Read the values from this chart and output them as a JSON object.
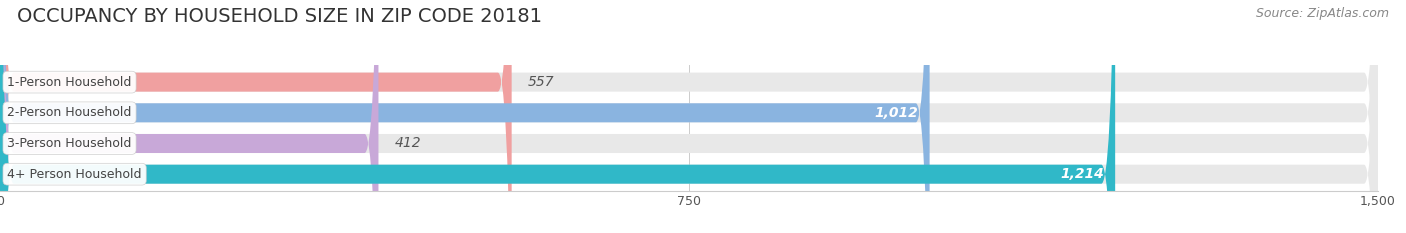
{
  "title": "OCCUPANCY BY HOUSEHOLD SIZE IN ZIP CODE 20181",
  "source": "Source: ZipAtlas.com",
  "categories": [
    "1-Person Household",
    "2-Person Household",
    "3-Person Household",
    "4+ Person Household"
  ],
  "values": [
    557,
    1012,
    412,
    1214
  ],
  "bar_colors": [
    "#f0a0a0",
    "#8ab4e0",
    "#c8a8d8",
    "#30b8c8"
  ],
  "bg_bar_color": "#e8e8e8",
  "label_text_color": "#555555",
  "value_label_colors": [
    "#666666",
    "#ffffff",
    "#666666",
    "#ffffff"
  ],
  "xlim": [
    0,
    1500
  ],
  "xticks": [
    0,
    750,
    1500
  ],
  "bar_height": 0.62,
  "background_color": "#ffffff",
  "title_fontsize": 14,
  "source_fontsize": 9,
  "bar_label_fontsize": 10,
  "cat_label_fontsize": 9,
  "tick_fontsize": 9
}
